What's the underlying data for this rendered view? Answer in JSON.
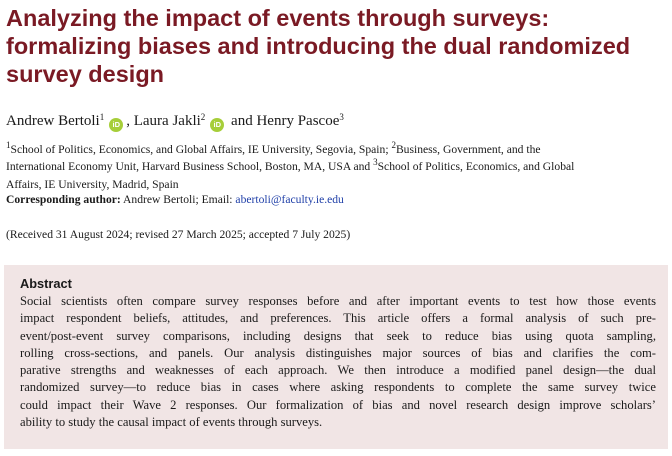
{
  "title_lines": [
    "Analyzing the impact of events through surveys:",
    "formalizing biases and introducing the dual randomized",
    "survey design"
  ],
  "authors": [
    {
      "name": "Andrew Bertoli",
      "sup": "1",
      "orcid": "iD"
    },
    {
      "name": "Laura Jakli",
      "sup": "2",
      "orcid": "iD"
    },
    {
      "name": "Henry Pascoe",
      "sup": "3"
    }
  ],
  "author_separators": [
    ", ",
    " and "
  ],
  "affiliation_lines": [
    "School of Politics, Economics, and Global Affairs, IE University, Segovia, Spain; ",
    "Business, Government, and the",
    "International Economy Unit, Harvard Business School, Boston, MA, USA and ",
    "School of Politics, Economics, and Global",
    "Affairs, IE University, Madrid, Spain"
  ],
  "affiliation_sups": [
    "1",
    "2",
    "3"
  ],
  "corresponding": {
    "label": "Corresponding author:",
    "text": " Andrew Bertoli; Email: ",
    "email": "abertoli@faculty.ie.edu"
  },
  "received": "(Received 31 August 2024; revised 27 March 2025; accepted 7 July 2025)",
  "abstract": {
    "heading": "Abstract",
    "lines": [
      "Social scientists often compare survey responses before and after important events to test how those events",
      "impact respondent beliefs, attitudes, and preferences. This article offers a formal analysis of such pre-",
      "event/post-event survey comparisons, including designs that seek to reduce bias using quota sampling,",
      "rolling cross-sections, and panels. Our analysis distinguishes major sources of bias and clarifies the com-",
      "parative strengths and weaknesses of each approach. We then introduce a modified panel design—the dual",
      "randomized survey—to reduce bias in cases where asking respondents to complete the same survey twice",
      "could impact their Wave 2 responses. Our formalization of bias and novel research design improve scholars’",
      "ability to study the causal impact of events through surveys."
    ]
  },
  "colors": {
    "title": "#7a1a24",
    "abstract_bg": "#f1e5e5",
    "email_link": "#1f3fa8",
    "orcid": "#a6ce39"
  }
}
